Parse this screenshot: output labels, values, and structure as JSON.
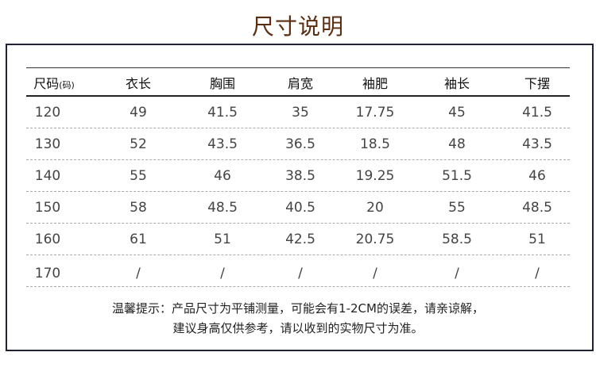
{
  "title": "尺寸说明",
  "table": {
    "header": [
      {
        "main": "尺码",
        "sub": "(码)"
      },
      "衣长",
      "胸围",
      "肩宽",
      "袖肥",
      "袖长",
      "下摆"
    ],
    "rows": [
      [
        "120",
        "49",
        "41.5",
        "35",
        "17.75",
        "45",
        "41.5"
      ],
      [
        "130",
        "52",
        "43.5",
        "36.5",
        "18.5",
        "48",
        "43.5"
      ],
      [
        "140",
        "55",
        "46",
        "38.5",
        "19.25",
        "51.5",
        "46"
      ],
      [
        "150",
        "58",
        "48.5",
        "40.5",
        "20",
        "55",
        "48.5"
      ],
      [
        "160",
        "61",
        "51",
        "42.5",
        "20.75",
        "58.5",
        "51"
      ],
      [
        "170",
        "/",
        "/",
        "/",
        "/",
        "/",
        "/"
      ]
    ]
  },
  "note": [
    "温馨提示：产品尺寸为平铺测量，可能会有1-2CM的误差，请亲谅解，",
    "建议身高仅供参考，请以收到的实物尺寸为准。"
  ]
}
